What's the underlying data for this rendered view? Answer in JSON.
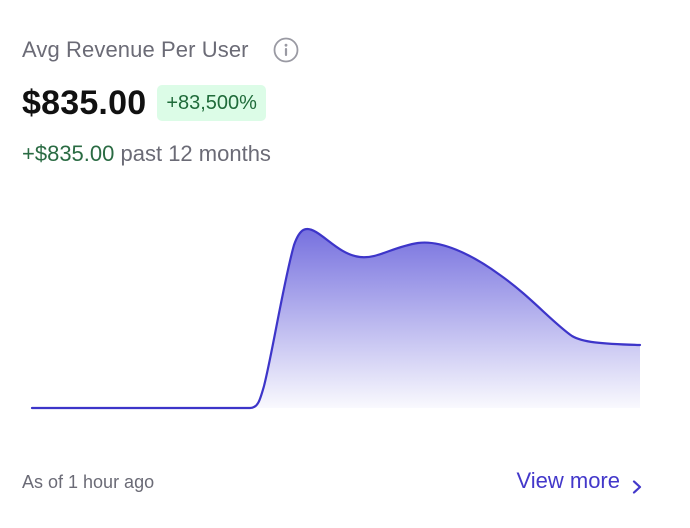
{
  "card": {
    "title": "Avg Revenue Per User",
    "value": "$835.00",
    "badge": "+83,500%",
    "change_amount": "+$835.00",
    "change_period": "past 12 months",
    "updated": "As of 1 hour ago",
    "view_more": "View more",
    "icons": {
      "info": "info-icon",
      "view_more": "chevron-right-icon"
    }
  },
  "colors": {
    "accent": "#4338ca",
    "line": "#3d35c9",
    "badge_bg": "#dcfce7",
    "badge_text": "#1f6b3a",
    "positive_text": "#2a6b43",
    "muted_text": "#6b6b76"
  }
}
